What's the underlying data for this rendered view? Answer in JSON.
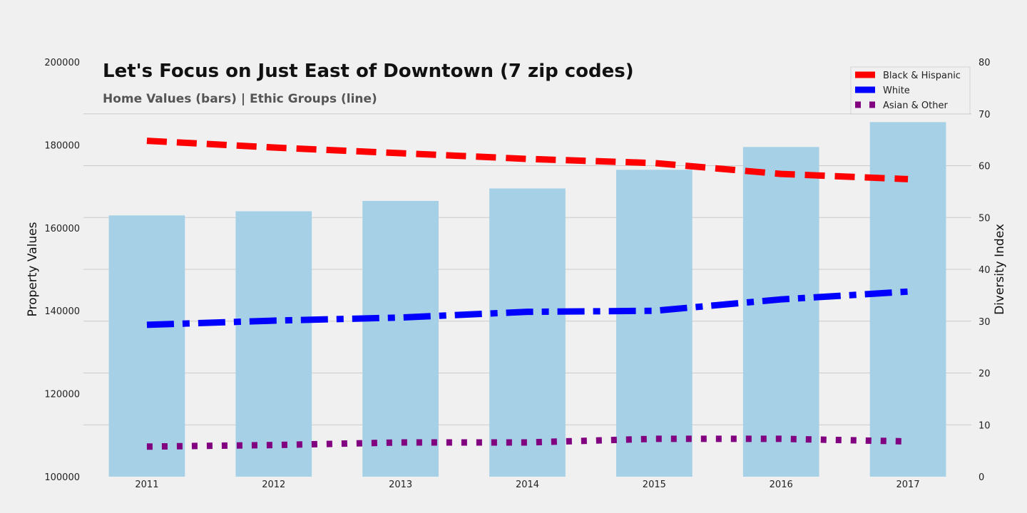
{
  "chart_data": {
    "type": "bar+line",
    "title": "Let's Focus on Just East of Downtown (7 zip codes)",
    "subtitle": "Home Values (bars) | Ethic Groups (line)",
    "xlabel": "",
    "ylabel_left": "Property Values",
    "ylabel_right": "Diversity Index",
    "categories": [
      "2011",
      "2012",
      "2013",
      "2014",
      "2015",
      "2016",
      "2017"
    ],
    "bars": {
      "name": "Home Values",
      "color": "#a6d0e6",
      "values": [
        163000,
        164000,
        166500,
        169500,
        174000,
        179500,
        185500
      ]
    },
    "ylim_left": [
      100000,
      200000
    ],
    "yticks_left": [
      100000,
      120000,
      140000,
      160000,
      180000,
      200000
    ],
    "ylim_right": [
      0,
      80
    ],
    "yticks_right": [
      0,
      10,
      20,
      30,
      40,
      50,
      60,
      70,
      80
    ],
    "series": [
      {
        "name": "Black & Hispanic",
        "color": "#ff0000",
        "style": "dashed",
        "values": [
          64.8,
          63.5,
          62.4,
          61.3,
          60.5,
          58.4,
          57.4
        ]
      },
      {
        "name": "White",
        "color": "#0000ff",
        "style": "dashdot",
        "values": [
          29.3,
          30.1,
          30.7,
          31.8,
          32.0,
          34.2,
          35.7
        ]
      },
      {
        "name": "Asian & Other",
        "color": "#800080",
        "style": "dotted",
        "values": [
          5.8,
          6.1,
          6.6,
          6.6,
          7.3,
          7.3,
          6.8
        ]
      }
    ],
    "grid": true,
    "legend_position": "top-right"
  }
}
